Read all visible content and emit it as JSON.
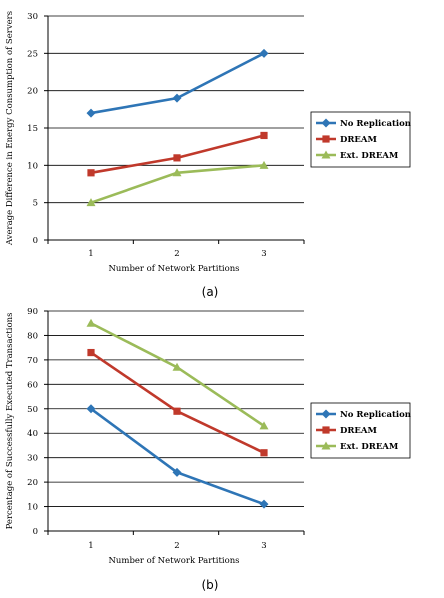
{
  "captions": {
    "a": "(a)",
    "b": "(b)"
  },
  "chart_data": [
    {
      "type": "line",
      "title": "",
      "xlabel": "Number of Network Partitions",
      "ylabel": "Average Difference in Energy Consumption of Servers",
      "x": [
        1,
        2,
        3
      ],
      "ylim": [
        0,
        30
      ],
      "yticks": [
        0,
        5,
        10,
        15,
        20,
        25,
        30
      ],
      "grid": true,
      "legend": "right",
      "series": [
        {
          "name": "No Replication",
          "values": [
            17,
            19,
            25
          ],
          "color": "#2e75b6",
          "marker": "diamond"
        },
        {
          "name": "DREAM",
          "values": [
            9,
            11,
            14
          ],
          "color": "#c0392b",
          "marker": "square"
        },
        {
          "name": "Ext. DREAM",
          "values": [
            5,
            9,
            10
          ],
          "color": "#9bbb59",
          "marker": "triangle"
        }
      ]
    },
    {
      "type": "line",
      "title": "",
      "xlabel": "Number of Network Partitions",
      "ylabel": "Percentage of Successfully Executed Transactions",
      "x": [
        1,
        2,
        3
      ],
      "ylim": [
        0,
        90
      ],
      "yticks": [
        0,
        10,
        20,
        30,
        40,
        50,
        60,
        70,
        80,
        90
      ],
      "grid": true,
      "legend": "right",
      "series": [
        {
          "name": "No Replication",
          "values": [
            50,
            24,
            11
          ],
          "color": "#2e75b6",
          "marker": "diamond"
        },
        {
          "name": "DREAM",
          "values": [
            73,
            49,
            32
          ],
          "color": "#c0392b",
          "marker": "square"
        },
        {
          "name": "Ext. DREAM",
          "values": [
            85,
            67,
            43
          ],
          "color": "#9bbb59",
          "marker": "triangle"
        }
      ]
    }
  ]
}
